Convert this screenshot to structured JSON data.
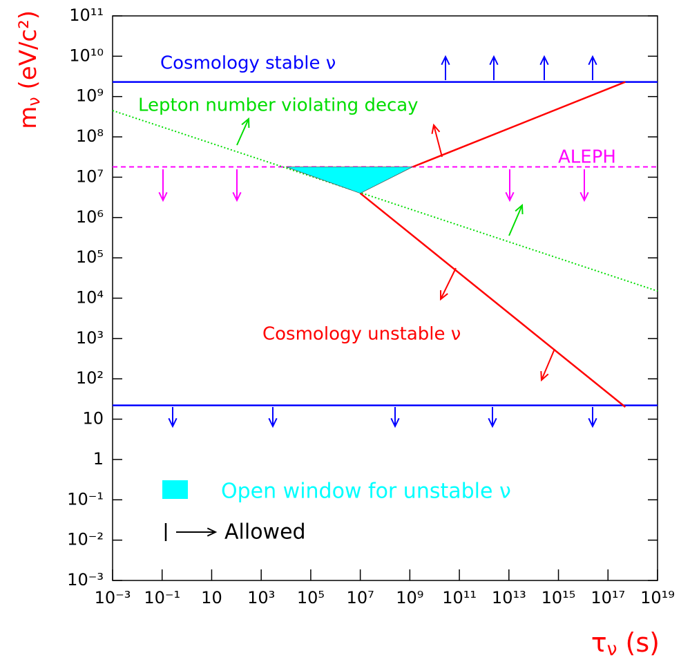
{
  "chart_data": {
    "type": "line",
    "xscale": "log",
    "yscale": "log",
    "xlabel": "τν (s)",
    "ylabel": "mν (eV/c²)",
    "xlim": [
      0.001,
      1e+19
    ],
    "ylim": [
      0.001,
      100000000000.0
    ],
    "xticks": [
      {
        "value": 0.001,
        "label": "10⁻³"
      },
      {
        "value": 0.1,
        "label": "10⁻¹"
      },
      10,
      {
        "value": 1000,
        "label": "10³"
      },
      {
        "value": 100000,
        "label": "10⁵"
      },
      {
        "value": 10000000,
        "label": "10⁷"
      },
      {
        "value": 1000000000,
        "label": "10⁹"
      },
      {
        "value": 100000000000,
        "label": "10¹¹"
      },
      {
        "value": 10000000000000,
        "label": "10¹³"
      },
      {
        "value": 1000000000000000,
        "label": "10¹⁵"
      },
      {
        "value": 100000000000000000,
        "label": "10¹⁷"
      },
      {
        "value": 1e+19,
        "label": "10¹⁹"
      }
    ],
    "yticks": [
      {
        "value": 0.001,
        "label": "10⁻³"
      },
      {
        "value": 0.01,
        "label": "10⁻²"
      },
      {
        "value": 0.1,
        "label": "10⁻¹"
      },
      1,
      10,
      {
        "value": 100,
        "label": "10²"
      },
      {
        "value": 1000,
        "label": "10³"
      },
      {
        "value": 10000,
        "label": "10⁴"
      },
      {
        "value": 100000,
        "label": "10⁵"
      },
      {
        "value": 1000000,
        "label": "10⁶"
      },
      {
        "value": 10000000,
        "label": "10⁷"
      },
      {
        "value": 100000000,
        "label": "10⁸"
      },
      {
        "value": 1000000000,
        "label": "10⁹"
      },
      {
        "value": 10000000000,
        "label": "10¹⁰"
      },
      {
        "value": 100000000000,
        "label": "10¹¹"
      }
    ],
    "series": [
      {
        "name": "Cosmology stable ν",
        "color": "#0000ff",
        "style": "solid",
        "x": [
          0.001,
          1e+19
        ],
        "values": [
          2300000000,
          2300000000
        ]
      },
      {
        "color": "#0000ff",
        "style": "solid",
        "x": [
          0.001,
          1e+19
        ],
        "values": [
          22,
          22
        ]
      },
      {
        "name": "ALEPH",
        "color": "#ff00ff",
        "style": "dashed",
        "x": [
          0.001,
          1e+19
        ],
        "values": [
          18000000,
          18000000
        ]
      },
      {
        "name": "Lepton number violating decay",
        "color": "#00dd00",
        "style": "dotted",
        "x": [
          0.001,
          1e+19
        ],
        "values": [
          450000000,
          15000
        ]
      },
      {
        "name": "Cosmology unstable ν",
        "color": "#ff0000",
        "style": "solid",
        "x": [
          1300000000,
          500000000000000000
        ],
        "values": [
          18000000,
          2300000000
        ]
      },
      {
        "color": "#ff0000",
        "style": "solid",
        "x": [
          10000000,
          500000000000000000
        ],
        "values": [
          4000000,
          20
        ]
      },
      {
        "name": "Open window for unstable ν",
        "type": "area",
        "color": "#00ffff",
        "x": [
          10000,
          1300000000,
          10000000
        ],
        "values": [
          18000000,
          18000000,
          4000000
        ]
      }
    ],
    "legend_note": "Allowed"
  }
}
